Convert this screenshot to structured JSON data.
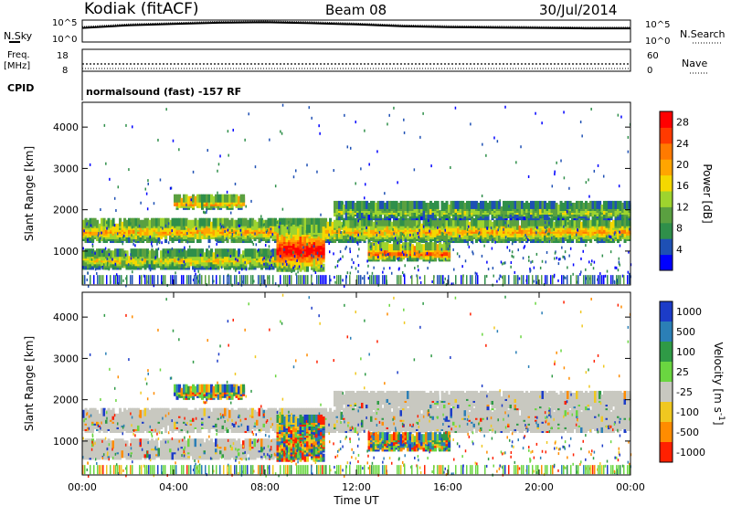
{
  "header": {
    "station": "Kodiak (fitACF)",
    "beam": "Beam 08",
    "date": "30/Jul/2014"
  },
  "summary": {
    "nsky_label": "N.Sky",
    "nsearch_label": "N.Search",
    "freq_label_1": "Freq.",
    "freq_label_2": "[MHz]",
    "nave_label": "Nave",
    "cpid_label": "CPID",
    "cpid_text": "normalsound (fast) -157 RF",
    "noise_ticks": [
      "10^5",
      "10^0"
    ],
    "freq_ticks": [
      "18",
      "8"
    ],
    "nave_ticks": [
      "60",
      "0"
    ]
  },
  "colors": {
    "power": [
      "#0000ff",
      "#1e50b4",
      "#2f8f4a",
      "#5aa040",
      "#9ed42e",
      "#f4d800",
      "#ffa500",
      "#ff7a00",
      "#ff3a00",
      "#ff0000"
    ],
    "velocity": {
      "1000": "#1c3cc8",
      "500": "#2b7fb6",
      "100": "#2f9a46",
      "25": "#6ad640",
      "-25": "#c8c8c0",
      "-100": "#f0c820",
      "-500": "#ff8c00",
      "-1000": "#ff2000"
    },
    "ground_scatter": "#c8c8c0"
  },
  "chart_data": [
    {
      "type": "line",
      "panel": "noise",
      "series": [
        {
          "values": [
            3.2,
            3.8,
            4.1,
            4.4,
            4.5,
            4.3,
            4.0,
            3.6,
            3.4,
            3.3,
            3.2,
            3.1,
            3.1
          ]
        }
      ],
      "x": [
        "00:00",
        "02:00",
        "04:00",
        "06:00",
        "08:00",
        "10:00",
        "12:00",
        "14:00",
        "16:00",
        "18:00",
        "20:00",
        "22:00",
        "00:00"
      ],
      "yticks": [
        "10^0",
        "10^5"
      ],
      "xlim": [
        "00:00",
        "00:00"
      ]
    },
    {
      "type": "heatmap",
      "panel": "power",
      "ylabel": "Slant Range [km]",
      "colorbar_label": "Power [dB]",
      "yticks": [
        1000,
        2000,
        3000,
        4000
      ],
      "ylim": [
        180,
        4600
      ],
      "colorbar_ticks": [
        4,
        8,
        12,
        16,
        20,
        24,
        28
      ],
      "clim": [
        0,
        30
      ],
      "xlim": [
        "00:00",
        "00:00"
      ],
      "features": [
        {
          "time_range": [
            "00:00",
            "24:00"
          ],
          "range_km": [
            1350,
            1800
          ],
          "peak_db": 20
        },
        {
          "time_range": [
            "00:00",
            "09:00"
          ],
          "range_km": [
            700,
            1050
          ],
          "peak_db": 18
        },
        {
          "time_range": [
            "04:00",
            "07:00"
          ],
          "range_km": [
            2150,
            2350
          ],
          "peak_db": 22
        },
        {
          "time_range": [
            "08:30",
            "10:30"
          ],
          "range_km": [
            650,
            1600
          ],
          "peak_db": 30
        },
        {
          "time_range": [
            "11:00",
            "24:00"
          ],
          "range_km": [
            1900,
            2200
          ],
          "peak_db": 14
        },
        {
          "time_range": [
            "12:30",
            "16:00"
          ],
          "range_km": [
            900,
            1200
          ],
          "peak_db": 26
        }
      ]
    },
    {
      "type": "heatmap",
      "panel": "velocity",
      "ylabel": "Slant Range [km]",
      "xlabel": "Time UT",
      "colorbar_label": "Velocity [m s^-1]",
      "yticks": [
        1000,
        2000,
        3000,
        4000
      ],
      "ylim": [
        180,
        4600
      ],
      "colorbar_ticks": [
        1000,
        500,
        100,
        25,
        -25,
        -100,
        -500,
        -1000
      ],
      "xticks": [
        "00:00",
        "04:00",
        "08:00",
        "12:00",
        "16:00",
        "20:00",
        "00:00"
      ],
      "xlim": [
        "00:00",
        "00:00"
      ]
    }
  ]
}
